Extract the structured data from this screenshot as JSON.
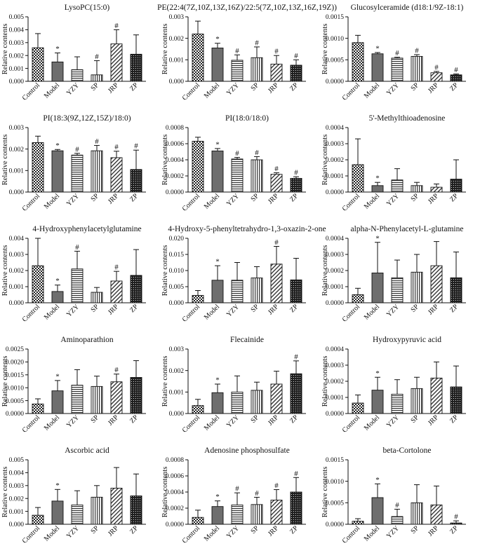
{
  "figure": {
    "categories": [
      "Control",
      "Model",
      "YZY",
      "SP",
      "JRP",
      "ZP"
    ],
    "ylabel": "Relative contents",
    "patterns": [
      "pat-check",
      "pat-solid",
      "pat-hstripe",
      "pat-vstripe",
      "pat-diag",
      "pat-dots"
    ]
  },
  "chart_data": [
    {
      "type": "bar",
      "title": "LysoPC(15:0)",
      "ylim": [
        0,
        0.005
      ],
      "ticks": [
        0,
        0.001,
        0.002,
        0.003,
        0.004,
        0.005
      ],
      "tick_labels": [
        "0.000",
        "0.001",
        "0.002",
        "0.003",
        "0.004",
        "0.005"
      ],
      "values": [
        0.0026,
        0.0015,
        0.0009,
        0.0005,
        0.0029,
        0.0021
      ],
      "errors": [
        0.0011,
        0.0007,
        0.001,
        0.0011,
        0.0011,
        0.0015
      ],
      "marks": [
        "",
        "*",
        "",
        "#",
        "#",
        ""
      ]
    },
    {
      "type": "bar",
      "title": "PE(22:4(7Z,10Z,13Z,16Z)/22:5(7Z,10Z,13Z,16Z,19Z))",
      "ylim": [
        0,
        0.003
      ],
      "ticks": [
        0,
        0.001,
        0.002,
        0.003
      ],
      "tick_labels": [
        "0.000",
        "0.001",
        "0.002",
        "0.003"
      ],
      "values": [
        0.0022,
        0.00155,
        0.00098,
        0.0011,
        0.0008,
        0.00075
      ],
      "errors": [
        0.0006,
        0.00022,
        0.00025,
        0.0005,
        0.0004,
        0.00025
      ],
      "marks": [
        "",
        "*",
        "#",
        "#",
        "#",
        "#"
      ]
    },
    {
      "type": "bar",
      "title": "Glucosylceramide (d18:1/9Z-18:1)",
      "ylim": [
        0,
        0.0015
      ],
      "ticks": [
        0,
        0.0005,
        0.001,
        0.0015
      ],
      "tick_labels": [
        "0.0000",
        "0.0005",
        "0.0010",
        "0.0015"
      ],
      "values": [
        0.0009,
        0.00064,
        0.00054,
        0.00058,
        0.0002,
        0.00015
      ],
      "errors": [
        0.00017,
        3e-05,
        2e-05,
        4e-05,
        3e-05,
        2e-05
      ],
      "marks": [
        "",
        "*",
        "#",
        "#",
        "#",
        "#"
      ]
    },
    {
      "type": "bar",
      "title": "PI(18:3(9Z,12Z,15Z)/18:0)",
      "ylim": [
        0,
        0.003
      ],
      "ticks": [
        0,
        0.001,
        0.002,
        0.003
      ],
      "tick_labels": [
        "0.000",
        "0.001",
        "0.002",
        "0.003"
      ],
      "values": [
        0.0023,
        0.00192,
        0.00172,
        0.00192,
        0.0016,
        0.00105
      ],
      "errors": [
        0.0003,
        6e-05,
        8e-05,
        0.00025,
        0.0003,
        0.0009
      ],
      "marks": [
        "",
        "*",
        "#",
        "#",
        "#",
        "#"
      ]
    },
    {
      "type": "bar",
      "title": "PI(18:0/18:0)",
      "ylim": [
        0,
        0.0008
      ],
      "ticks": [
        0,
        0.0002,
        0.0004,
        0.0006,
        0.0008
      ],
      "tick_labels": [
        "0.0000",
        "0.0002",
        "0.0004",
        "0.0006",
        "0.0008"
      ],
      "values": [
        0.00063,
        0.00051,
        0.00041,
        0.0004,
        0.00022,
        0.00017
      ],
      "errors": [
        5e-05,
        3e-05,
        2e-05,
        4e-05,
        2e-05,
        2e-05
      ],
      "marks": [
        "",
        "*",
        "#",
        "#",
        "#",
        "#"
      ]
    },
    {
      "type": "bar",
      "title": "5'-Methylthioadenosine",
      "ylim": [
        0,
        0.0004
      ],
      "ticks": [
        0,
        0.0001,
        0.0002,
        0.0003,
        0.0004
      ],
      "tick_labels": [
        "0.0000",
        "0.0001",
        "0.0002",
        "0.0003",
        "0.0004"
      ],
      "values": [
        0.00017,
        4e-05,
        7.5e-05,
        4e-05,
        3e-05,
        8e-05
      ],
      "errors": [
        0.00016,
        2e-05,
        7e-05,
        2e-05,
        2e-05,
        0.00012
      ],
      "marks": [
        "",
        "*",
        "",
        "",
        "",
        ""
      ]
    },
    {
      "type": "bar",
      "title": "4-Hydroxyphenylacetylglutamine",
      "ylim": [
        0,
        0.004
      ],
      "ticks": [
        0,
        0.001,
        0.002,
        0.003,
        0.004
      ],
      "tick_labels": [
        "0.000",
        "0.001",
        "0.002",
        "0.003",
        "0.004"
      ],
      "values": [
        0.0023,
        0.0007,
        0.0021,
        0.00065,
        0.00135,
        0.0017
      ],
      "errors": [
        0.0017,
        0.0004,
        0.0011,
        0.0003,
        0.0006,
        0.0016
      ],
      "marks": [
        "",
        "*",
        "#",
        "",
        "#",
        ""
      ]
    },
    {
      "type": "bar",
      "title": "4-Hydroxy-5-phenyltetrahydro-1,3-oxazin-2-one",
      "ylim": [
        0,
        0.02
      ],
      "ticks": [
        0,
        0.005,
        0.01,
        0.015,
        0.02
      ],
      "tick_labels": [
        "0.000",
        "0.005",
        "0.010",
        "0.015",
        "0.020"
      ],
      "values": [
        0.0023,
        0.007,
        0.007,
        0.0077,
        0.012,
        0.0071
      ],
      "errors": [
        0.0015,
        0.0045,
        0.0055,
        0.0035,
        0.0055,
        0.0067
      ],
      "marks": [
        "",
        "*",
        "",
        "",
        "#",
        ""
      ]
    },
    {
      "type": "bar",
      "title": "alpha-N-Phenylacetyl-L-glutamine",
      "ylim": [
        0,
        0.0004
      ],
      "ticks": [
        0,
        0.0001,
        0.0002,
        0.0003,
        0.0004
      ],
      "tick_labels": [
        "0.0000",
        "0.0001",
        "0.0002",
        "0.0003",
        "0.0004"
      ],
      "values": [
        5e-05,
        0.000185,
        0.000155,
        0.00019,
        0.00023,
        0.000155
      ],
      "errors": [
        4e-05,
        0.00019,
        0.00011,
        0.00011,
        0.00015,
        0.00016
      ],
      "marks": [
        "",
        "*",
        "",
        "",
        "",
        ""
      ]
    },
    {
      "type": "bar",
      "title": "Aminoparathion",
      "ylim": [
        0,
        0.0025
      ],
      "ticks": [
        0,
        0.0005,
        0.001,
        0.0015,
        0.002,
        0.0025
      ],
      "tick_labels": [
        "0.0000",
        "0.0005",
        "0.0010",
        "0.0015",
        "0.0020",
        "0.0025"
      ],
      "values": [
        0.00037,
        0.00088,
        0.0011,
        0.00105,
        0.00123,
        0.0014
      ],
      "errors": [
        0.0002,
        0.0004,
        0.0006,
        0.0004,
        0.0003,
        0.00065
      ],
      "marks": [
        "",
        "*",
        "",
        "",
        "#",
        ""
      ]
    },
    {
      "type": "bar",
      "title": "Flecainide",
      "ylim": [
        0,
        0.003
      ],
      "ticks": [
        0,
        0.001,
        0.002,
        0.003
      ],
      "tick_labels": [
        "0.000",
        "0.001",
        "0.002",
        "0.003"
      ],
      "values": [
        0.00037,
        0.00097,
        0.001,
        0.00108,
        0.00137,
        0.00185
      ],
      "errors": [
        0.00029,
        0.0004,
        0.00075,
        0.00038,
        0.0006,
        0.0006
      ],
      "marks": [
        "",
        "*",
        "",
        "",
        "",
        "#"
      ]
    },
    {
      "type": "bar",
      "title": "Hydroxypyruvic acid",
      "ylim": [
        0,
        0.0004
      ],
      "ticks": [
        0,
        0.0001,
        0.0002,
        0.0003,
        0.0004
      ],
      "tick_labels": [
        "0.0000",
        "0.0001",
        "0.0002",
        "0.0003",
        "0.0004"
      ],
      "values": [
        6.5e-05,
        0.000145,
        0.00012,
        0.000155,
        0.00022,
        0.000165
      ],
      "errors": [
        5e-05,
        8e-05,
        9e-05,
        7e-05,
        0.0001,
        0.00013
      ],
      "marks": [
        "",
        "*",
        "",
        "",
        "",
        ""
      ]
    },
    {
      "type": "bar",
      "title": "Ascorbic acid",
      "ylim": [
        0,
        0.005
      ],
      "ticks": [
        0,
        0.001,
        0.002,
        0.003,
        0.004,
        0.005
      ],
      "tick_labels": [
        "0.000",
        "0.001",
        "0.002",
        "0.003",
        "0.004",
        "0.005"
      ],
      "values": [
        0.0007,
        0.0018,
        0.0015,
        0.0021,
        0.0028,
        0.0022
      ],
      "errors": [
        0.0006,
        0.0009,
        0.0011,
        0.0009,
        0.0016,
        0.0017
      ],
      "marks": [
        "",
        "*",
        "",
        "",
        "",
        ""
      ]
    },
    {
      "type": "bar",
      "title": "Adenosine phosphosulfate",
      "ylim": [
        0,
        0.0008
      ],
      "ticks": [
        0,
        0.0002,
        0.0004,
        0.0006,
        0.0008
      ],
      "tick_labels": [
        "0.0000",
        "0.0002",
        "0.0004",
        "0.0006",
        "0.0008"
      ],
      "values": [
        8.5e-05,
        0.00022,
        0.00024,
        0.000245,
        0.0003,
        0.0004
      ],
      "errors": [
        9e-05,
        7e-05,
        0.00015,
        9e-05,
        0.00013,
        0.00018
      ],
      "marks": [
        "",
        "*",
        "#",
        "#",
        "#",
        "#"
      ]
    },
    {
      "type": "bar",
      "title": "beta-Cortolone",
      "ylim": [
        0,
        0.0015
      ],
      "ticks": [
        0,
        0.0005,
        0.001,
        0.0015
      ],
      "tick_labels": [
        "0.0000",
        "0.0005",
        "0.0010",
        "0.0015"
      ],
      "values": [
        7e-05,
        0.00062,
        0.00018,
        0.0005,
        0.00045,
        3e-05
      ],
      "errors": [
        6e-05,
        0.00032,
        0.00017,
        0.00042,
        0.00044,
        5e-05
      ],
      "marks": [
        "",
        "*",
        "#",
        "",
        "",
        "#"
      ]
    }
  ]
}
